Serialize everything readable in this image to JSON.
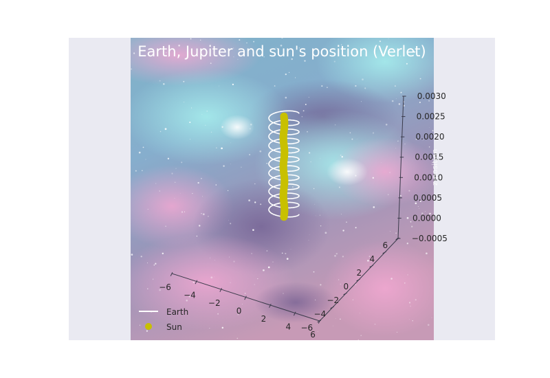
{
  "chart_data": {
    "type": "line",
    "projection": "3d",
    "title": "Earth, Jupiter and sun's position (Verlet)",
    "xlabel": "",
    "ylabel": "",
    "zlabel": "z-position",
    "xlim": [
      -6,
      6
    ],
    "ylim": [
      -6,
      6
    ],
    "zlim": [
      -0.0005,
      0.003
    ],
    "x_ticks": [
      "−6",
      "−4",
      "−2",
      "0",
      "2",
      "4",
      "6"
    ],
    "y_ticks": [
      "−6",
      "−4",
      "−2",
      "0",
      "2",
      "4",
      "6"
    ],
    "z_ticks": [
      "−0.0005",
      "0.0000",
      "0.0005",
      "0.0010",
      "0.0015",
      "0.0020",
      "0.0025",
      "0.0030"
    ],
    "grid": false,
    "legend_position": "bottom-left",
    "background": "space nebula image",
    "series": [
      {
        "name": "Earth",
        "style": "line",
        "color": "#ffffff",
        "orbit_radius_au": 1.0,
        "z_range": [
          0.0,
          0.0025
        ],
        "revolutions": 11
      },
      {
        "name": "Sun",
        "style": "marker",
        "color": "#c8c000",
        "x_approx": 0.0,
        "y_approx": 0.0,
        "z_range": [
          0.0,
          0.0025
        ]
      }
    ]
  }
}
